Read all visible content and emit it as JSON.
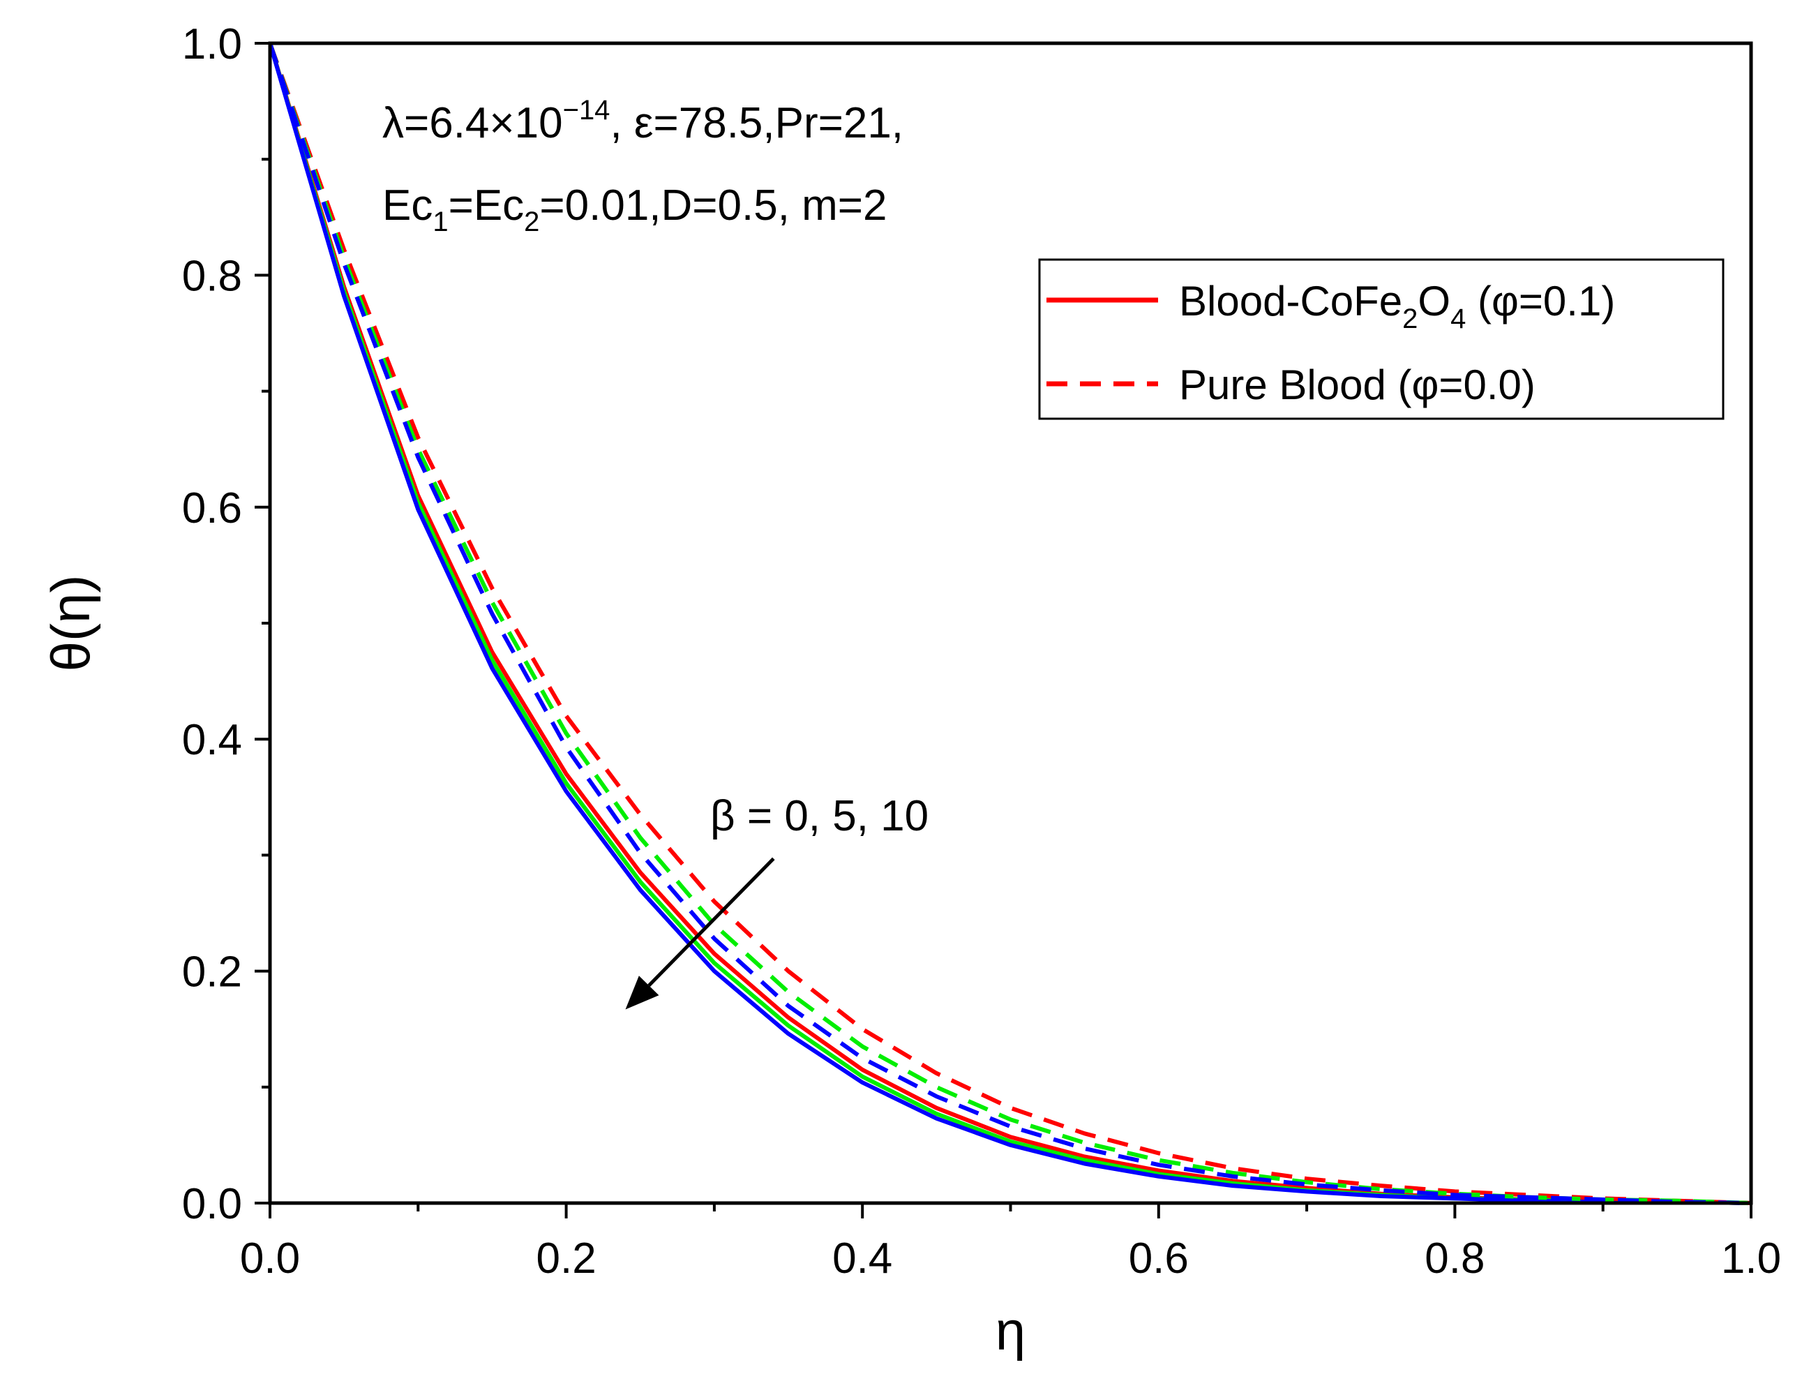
{
  "chart_data": {
    "type": "line",
    "xlabel": "η",
    "ylabel": "θ(η)",
    "xlim": [
      0.0,
      1.0
    ],
    "ylim": [
      0.0,
      1.0
    ],
    "x_ticks": [
      "0.0",
      "0.2",
      "0.4",
      "0.6",
      "0.8",
      "1.0"
    ],
    "y_ticks": [
      "0.0",
      "0.2",
      "0.4",
      "0.6",
      "0.8",
      "1.0"
    ],
    "grid": false,
    "legend_position": "top-right",
    "legend": [
      {
        "label": "Blood-CoFe",
        "sub1": "2",
        "mid": "O",
        "sub2": "4",
        "tail": " (φ=0.1)",
        "style": "solid",
        "color": "#ff0000"
      },
      {
        "label": "Pure Blood (φ=0.0)",
        "style": "dashed",
        "color": "#ff0000"
      }
    ],
    "params": {
      "line1_a": "λ=6.4×10",
      "line1_exp": "−14",
      "line1_b": ", ε=78.5,Pr=21,",
      "line2_a": "Ec",
      "line2_sub1": "1",
      "line2_b": "=Ec",
      "line2_sub2": "2",
      "line2_c": "=0.01,D=0.5, m=2"
    },
    "arrow_label": "β = 0, 5, 10",
    "x": [
      0.0,
      0.05,
      0.1,
      0.15,
      0.2,
      0.25,
      0.3,
      0.35,
      0.4,
      0.45,
      0.5,
      0.55,
      0.6,
      0.65,
      0.7,
      0.75,
      0.8,
      0.85,
      0.9,
      0.95,
      1.0
    ],
    "series": [
      {
        "name": "Blood-CoFe2O4 (φ=0.1), β=0",
        "color": "#ff0000",
        "style": "solid",
        "values": [
          1.0,
          0.79,
          0.61,
          0.475,
          0.37,
          0.285,
          0.215,
          0.16,
          0.115,
          0.082,
          0.057,
          0.04,
          0.028,
          0.019,
          0.013,
          0.008,
          0.005,
          0.003,
          0.002,
          0.001,
          0.0
        ]
      },
      {
        "name": "Blood-CoFe2O4 (φ=0.1), β=5",
        "color": "#00ee00",
        "style": "solid",
        "values": [
          1.0,
          0.786,
          0.604,
          0.468,
          0.362,
          0.277,
          0.207,
          0.153,
          0.109,
          0.077,
          0.053,
          0.037,
          0.025,
          0.017,
          0.011,
          0.007,
          0.004,
          0.003,
          0.002,
          0.001,
          0.0
        ]
      },
      {
        "name": "Blood-CoFe2O4 (φ=0.1), β=10",
        "color": "#0000ff",
        "style": "solid",
        "values": [
          1.0,
          0.782,
          0.598,
          0.461,
          0.355,
          0.27,
          0.2,
          0.146,
          0.104,
          0.073,
          0.05,
          0.034,
          0.023,
          0.015,
          0.01,
          0.006,
          0.004,
          0.002,
          0.001,
          0.001,
          0.0
        ]
      },
      {
        "name": "Pure Blood (φ=0.0), β=0",
        "color": "#ff0000",
        "style": "dashed",
        "values": [
          1.0,
          0.822,
          0.66,
          0.53,
          0.42,
          0.335,
          0.26,
          0.2,
          0.15,
          0.112,
          0.082,
          0.06,
          0.043,
          0.03,
          0.021,
          0.015,
          0.01,
          0.007,
          0.004,
          0.002,
          0.0
        ]
      },
      {
        "name": "Pure Blood (φ=0.0), β=5",
        "color": "#00ee00",
        "style": "dashed",
        "values": [
          1.0,
          0.815,
          0.65,
          0.518,
          0.405,
          0.315,
          0.24,
          0.182,
          0.135,
          0.1,
          0.072,
          0.052,
          0.037,
          0.026,
          0.018,
          0.012,
          0.008,
          0.005,
          0.003,
          0.002,
          0.0
        ]
      },
      {
        "name": "Pure Blood (φ=0.0), β=10",
        "color": "#0000ff",
        "style": "dashed",
        "values": [
          1.0,
          0.81,
          0.643,
          0.508,
          0.393,
          0.302,
          0.228,
          0.17,
          0.125,
          0.092,
          0.066,
          0.047,
          0.033,
          0.023,
          0.016,
          0.011,
          0.007,
          0.005,
          0.003,
          0.001,
          0.0
        ]
      }
    ],
    "arrow": {
      "from": [
        0.34,
        0.297
      ],
      "to": [
        0.24,
        0.167
      ]
    }
  }
}
